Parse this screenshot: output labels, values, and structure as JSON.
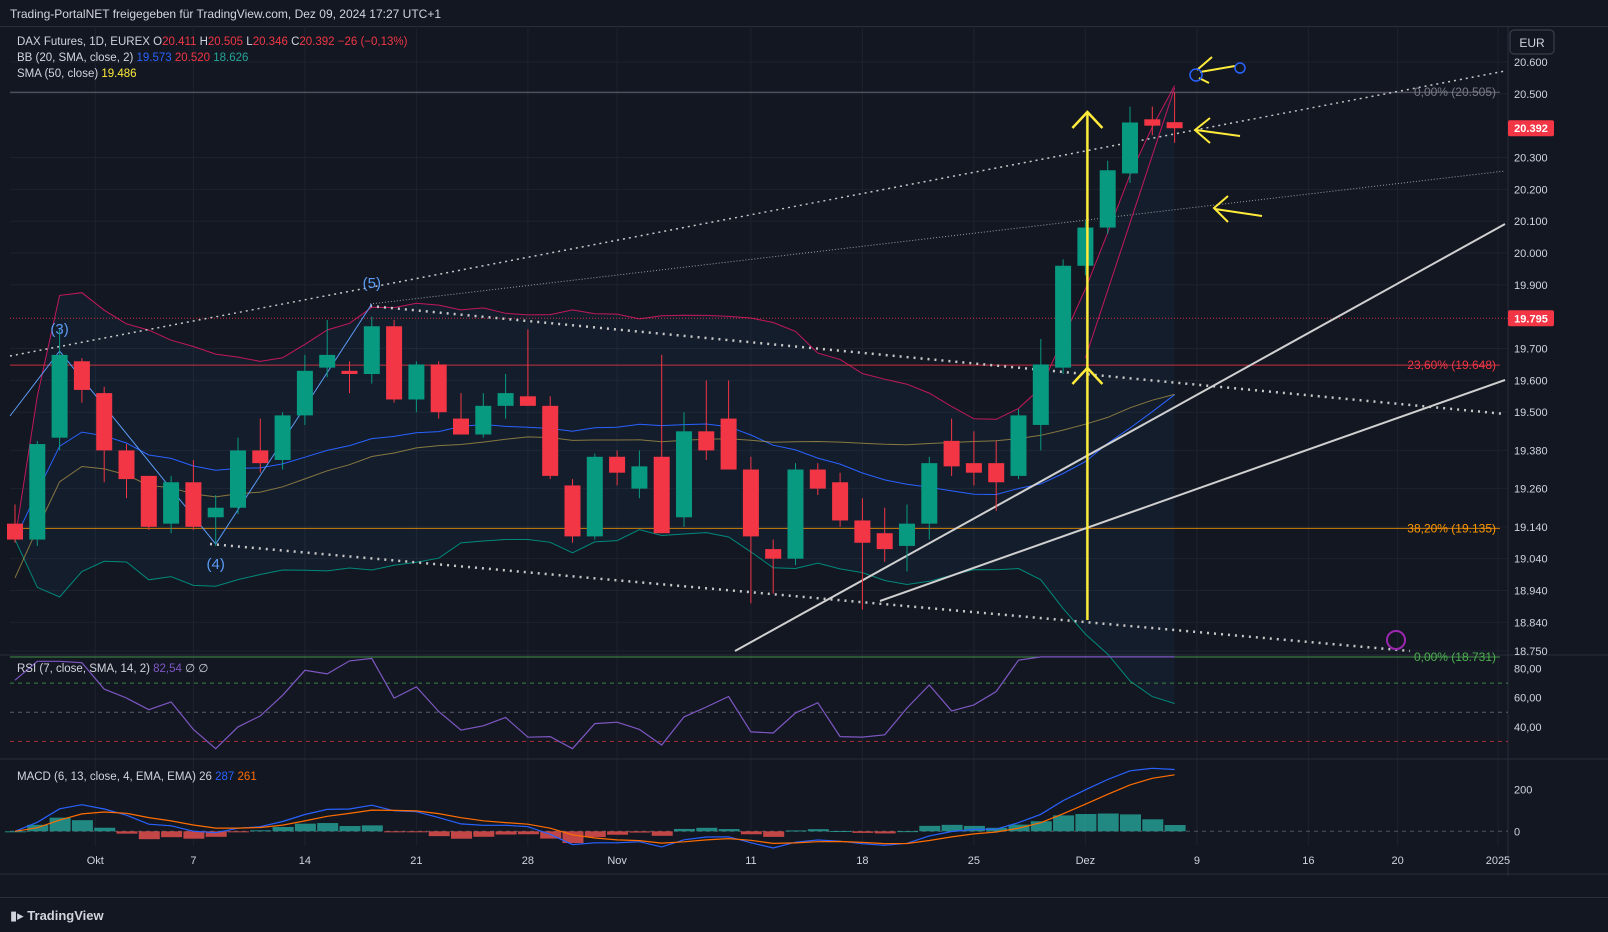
{
  "header": {
    "text": "Trading-PortalNET freigegeben für TradingView.com, Dez 09, 2024 17:27 UTC+1"
  },
  "footer": {
    "brand": "TradingView"
  },
  "currency": "EUR",
  "legend": {
    "symbol": "DAX Futures, 1D, EUREX",
    "ohlc": [
      {
        "k": "O",
        "v": "20.411"
      },
      {
        "k": "H",
        "v": "20.505"
      },
      {
        "k": "L",
        "v": "20.346"
      },
      {
        "k": "C",
        "v": "20.392"
      }
    ],
    "change": "−26 (−0,13%)",
    "bb": {
      "label": "BB (20, SMA, close, 2)",
      "basis": "19.573",
      "upper": "20.520",
      "lower": "18.626"
    },
    "sma": {
      "label": "SMA (50, close)",
      "value": "19.486"
    },
    "rsi": {
      "label": "RSI (7, close, SMA, 14, 2)",
      "value": "82,54",
      "extra": "∅ ∅"
    },
    "macd": {
      "label": "MACD (6, 13, close, 4, EMA, EMA)",
      "hist": "26",
      "macd": "287",
      "signal": "261"
    }
  },
  "colors": {
    "up": "#089981",
    "down": "#f23645",
    "bg": "#131722",
    "grid": "#1e222d",
    "bbBasis": "#2962ff",
    "bbUpper": "#c2185b",
    "bbLower": "#00897b",
    "sma": "#b8a04a",
    "rsi": "#7e57c2",
    "macd": "#2962ff",
    "signal": "#ff6d00",
    "annot": "#ffeb3b",
    "wave": "#5b9cf6"
  },
  "chart_data": {
    "type": "candlestick",
    "title": "DAX Futures, 1D, EUREX",
    "y_ticks": [
      "20.600",
      "20.500",
      "20.300",
      "20.200",
      "20.100",
      "20.000",
      "19.900",
      "19.700",
      "19.600",
      "19.500",
      "19.380",
      "19.260",
      "19.140",
      "19.040",
      "18.940",
      "18.840",
      "18.750"
    ],
    "x_ticks": [
      "Okt",
      "7",
      "14",
      "21",
      "28",
      "Nov",
      "11",
      "18",
      "25",
      "Dez",
      "9",
      "16",
      "20",
      "2025"
    ],
    "price_labels": {
      "last": "20.392",
      "level": "19.795"
    },
    "fib_levels": [
      {
        "label": "0,00% (20.505)",
        "value": 20505
      },
      {
        "label": "23,60% (19.648)",
        "value": 19648
      },
      {
        "label": "38,20% (19.135)",
        "value": 19135
      },
      {
        "label": "0,00% (18.731)",
        "value": 18731
      }
    ],
    "wave_labels": [
      "(3)",
      "(4)",
      "(5)"
    ],
    "candles": [
      [
        19150,
        19210,
        19090,
        19100
      ],
      [
        19100,
        19410,
        19080,
        19400
      ],
      [
        19420,
        19760,
        19380,
        19680
      ],
      [
        19660,
        19670,
        19530,
        19570
      ],
      [
        19560,
        19580,
        19280,
        19380
      ],
      [
        19380,
        19400,
        19230,
        19290
      ],
      [
        19300,
        19300,
        19130,
        19140
      ],
      [
        19150,
        19300,
        19120,
        19280
      ],
      [
        19280,
        19350,
        19130,
        19140
      ],
      [
        19170,
        19240,
        19080,
        19200
      ],
      [
        19200,
        19420,
        19180,
        19380
      ],
      [
        19380,
        19480,
        19310,
        19340
      ],
      [
        19350,
        19500,
        19320,
        19490
      ],
      [
        19490,
        19680,
        19460,
        19630
      ],
      [
        19640,
        19790,
        19610,
        19680
      ],
      [
        19630,
        19660,
        19560,
        19620
      ],
      [
        19620,
        19800,
        19590,
        19770
      ],
      [
        19770,
        19790,
        19530,
        19540
      ],
      [
        19540,
        19660,
        19500,
        19650
      ],
      [
        19650,
        19660,
        19480,
        19500
      ],
      [
        19480,
        19560,
        19430,
        19430
      ],
      [
        19430,
        19560,
        19420,
        19520
      ],
      [
        19520,
        19620,
        19480,
        19560
      ],
      [
        19550,
        19760,
        19520,
        19520
      ],
      [
        19520,
        19550,
        19290,
        19300
      ],
      [
        19270,
        19290,
        19090,
        19110
      ],
      [
        19110,
        19370,
        19100,
        19360
      ],
      [
        19360,
        19380,
        19270,
        19310
      ],
      [
        19260,
        19380,
        19230,
        19330
      ],
      [
        19360,
        19680,
        19120,
        19120
      ],
      [
        19170,
        19500,
        19140,
        19440
      ],
      [
        19440,
        19600,
        19350,
        19380
      ],
      [
        19480,
        19600,
        19320,
        19320
      ],
      [
        19320,
        19360,
        18900,
        19110
      ],
      [
        19070,
        19100,
        18930,
        19040
      ],
      [
        19040,
        19340,
        19020,
        19320
      ],
      [
        19320,
        19340,
        19240,
        19260
      ],
      [
        19280,
        19310,
        19140,
        19160
      ],
      [
        19160,
        19230,
        18880,
        19090
      ],
      [
        19120,
        19200,
        19030,
        19070
      ],
      [
        19080,
        19210,
        19000,
        19150
      ],
      [
        19150,
        19360,
        19100,
        19340
      ],
      [
        19410,
        19480,
        19300,
        19330
      ],
      [
        19340,
        19440,
        19270,
        19310
      ],
      [
        19340,
        19410,
        19190,
        19280
      ],
      [
        19300,
        19510,
        19290,
        19490
      ],
      [
        19460,
        19730,
        19380,
        19650
      ],
      [
        19640,
        19980,
        19620,
        19960
      ],
      [
        19960,
        20100,
        19930,
        20080
      ],
      [
        20080,
        20290,
        20060,
        20260
      ],
      [
        20250,
        20460,
        20220,
        20410
      ],
      [
        20420,
        20460,
        20370,
        20400
      ],
      [
        20411,
        20505,
        20346,
        20392
      ]
    ],
    "rsi_ticks": [
      "80,00",
      "60,00",
      "40,00"
    ],
    "macd_ticks": [
      "200",
      "0"
    ]
  }
}
